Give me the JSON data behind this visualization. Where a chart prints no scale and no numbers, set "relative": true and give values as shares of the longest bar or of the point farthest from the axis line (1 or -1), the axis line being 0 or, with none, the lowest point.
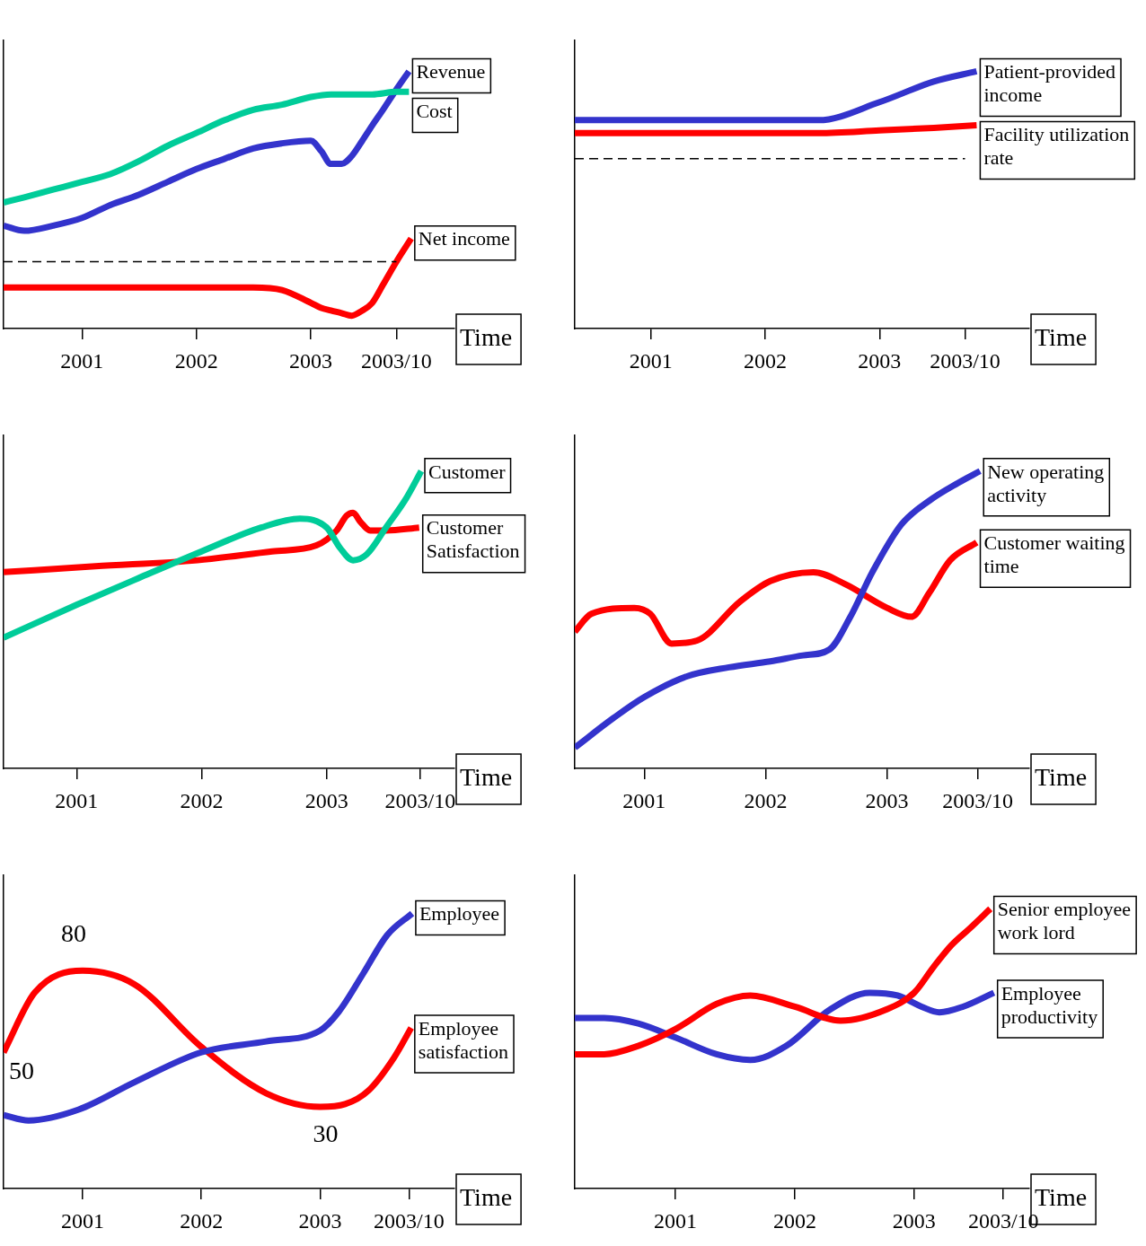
{
  "chart_data": [
    {
      "type": "line",
      "xlabel": "Time",
      "relative": true,
      "xlim": [
        "2000-04-26",
        "2004-04-03"
      ],
      "xticks": [
        "2001",
        "2002",
        "2003",
        {
          "value": "2003-10",
          "label": "2003/10"
        }
      ],
      "legend": false,
      "ref_lines": [
        {
          "axis": "y",
          "value": 0.26,
          "color": "#000000",
          "line_style": "dashed"
        }
      ],
      "series": [
        {
          "name": "Cost",
          "color": "#00cc99",
          "x": [
            "2000-04-26",
            "2000-07-01",
            "2000-10-01",
            "2001-01-01",
            "2001-04-01",
            "2001-07-01",
            "2001-10-01",
            "2002-01-01",
            "2002-04-01",
            "2002-07-01",
            "2002-10-01",
            "2003-01-01",
            "2003-03-06",
            "2003-05-11",
            "2003-07-16",
            "2003-10-01",
            "2003-11-10"
          ],
          "values": [
            0.49,
            0.51,
            0.54,
            0.57,
            0.6,
            0.65,
            0.71,
            0.76,
            0.81,
            0.85,
            0.87,
            0.9,
            0.91,
            0.91,
            0.91,
            0.92,
            0.92
          ]
        },
        {
          "name": "Revenue",
          "color": "#3333cc",
          "x": [
            "2000-04-26",
            "2000-07-01",
            "2000-10-01",
            "2001-01-01",
            "2001-04-01",
            "2001-07-01",
            "2001-10-01",
            "2002-01-01",
            "2002-04-01",
            "2002-07-01",
            "2002-10-01",
            "2003-01-01",
            "2003-02-03",
            "2003-03-06",
            "2003-04-09",
            "2003-05-11",
            "2003-06-14",
            "2003-07-16",
            "2003-08-19",
            "2003-10-01",
            "2003-11-10"
          ],
          "values": [
            0.4,
            0.38,
            0.4,
            0.43,
            0.48,
            0.52,
            0.57,
            0.62,
            0.66,
            0.7,
            0.72,
            0.73,
            0.69,
            0.64,
            0.64,
            0.67,
            0.73,
            0.79,
            0.85,
            0.93,
            1
          ]
        },
        {
          "name": "Net income",
          "color": "#ff0000",
          "x": [
            "2000-04-26",
            "2001-01-01",
            "2002-01-01",
            "2002-07-01",
            "2002-10-01",
            "2003-01-01",
            "2003-02-03",
            "2003-03-06",
            "2003-04-09",
            "2003-05-11",
            "2003-06-14",
            "2003-07-16",
            "2003-08-19",
            "2003-10-01",
            "2003-11-17"
          ],
          "values": [
            0.16,
            0.16,
            0.16,
            0.16,
            0.15,
            0.1,
            0.08,
            0.07,
            0.06,
            0.05,
            0.07,
            0.1,
            0.17,
            0.26,
            0.35
          ]
        }
      ]
    },
    {
      "type": "line",
      "xlabel": "Time",
      "relative": true,
      "xlim": [
        "2000-05-03",
        "2004-04-23"
      ],
      "xticks": [
        "2001",
        "2002",
        "2003",
        {
          "value": "2003-10",
          "label": "2003/10"
        }
      ],
      "legend": false,
      "ref_lines": [
        {
          "axis": "y",
          "value": 0.66,
          "color": "#000000",
          "line_style": "dashed"
        }
      ],
      "series": [
        {
          "name": "Patient-provided income",
          "color": "#3333cc",
          "x": [
            "2000-05-03",
            "2001-01-01",
            "2002-01-01",
            "2002-06-20",
            "2003-01-01",
            "2003-06-23",
            "2003-11-07"
          ],
          "values": [
            0.81,
            0.81,
            0.81,
            0.81,
            0.88,
            0.96,
            1
          ]
        },
        {
          "name": "Facility utilization rate",
          "color": "#ff0000",
          "x": [
            "2000-05-03",
            "2001-01-01",
            "2002-01-01",
            "2002-06-20",
            "2003-01-01",
            "2003-06-23",
            "2003-11-07"
          ],
          "values": [
            0.76,
            0.76,
            0.76,
            0.76,
            0.77,
            0.78,
            0.79
          ]
        }
      ]
    },
    {
      "type": "line",
      "xlabel": "Time",
      "relative": true,
      "xlim": [
        "2000-06-02",
        "2004-01-09"
      ],
      "xticks": [
        "2001",
        "2002",
        "2003",
        {
          "value": "2003-10",
          "label": "2003/10"
        }
      ],
      "legend": false,
      "series": [
        {
          "name": "Customer",
          "color": "#00cc99",
          "x": [
            "2000-06-02",
            "2001-01-01",
            "2001-07-01",
            "2002-01-01",
            "2002-06-24",
            "2002-10-15",
            "2003-01-01",
            "2003-02-10",
            "2003-03-19",
            "2003-04-28",
            "2003-06-23",
            "2003-08-22",
            "2003-10-04"
          ],
          "values": [
            0.44,
            0.55,
            0.64,
            0.73,
            0.81,
            0.84,
            0.81,
            0.74,
            0.7,
            0.72,
            0.81,
            0.91,
            1
          ]
        },
        {
          "name": "Customer Satisfaction",
          "color": "#ff0000",
          "x": [
            "2000-06-02",
            "2001-02-25",
            "2001-12-20",
            "2002-07-26",
            "2002-12-02",
            "2003-01-30",
            "2003-02-28",
            "2003-03-19",
            "2003-04-09",
            "2003-05-08",
            "2003-06-23",
            "2003-09-28"
          ],
          "values": [
            0.66,
            0.68,
            0.7,
            0.73,
            0.75,
            0.8,
            0.85,
            0.86,
            0.83,
            0.8,
            0.8,
            0.81
          ]
        }
      ]
    },
    {
      "type": "line",
      "xlabel": "Time",
      "relative": true,
      "xlim": [
        "2000-06-06",
        "2004-03-04"
      ],
      "xticks": [
        "2001",
        "2002",
        "2003",
        {
          "value": "2003-10",
          "label": "2003/10"
        }
      ],
      "legend": false,
      "series": [
        {
          "name": "New operating activity",
          "color": "#3333cc",
          "x": [
            "2000-06-06",
            "2000-10-01",
            "2001-01-01",
            "2001-05-11",
            "2001-09-13",
            "2002-01-15",
            "2002-04-23",
            "2002-07-12",
            "2002-09-13",
            "2002-11-18",
            "2003-02-13",
            "2003-05-08",
            "2003-08-03",
            "2003-10-08"
          ],
          "values": [
            0.07,
            0.17,
            0.24,
            0.31,
            0.34,
            0.36,
            0.38,
            0.4,
            0.51,
            0.66,
            0.82,
            0.9,
            0.96,
            1
          ]
        },
        {
          "name": "Customer waiting time",
          "color": "#ff0000",
          "x": [
            "2000-06-06",
            "2000-07-26",
            "2000-12-02",
            "2001-01-19",
            "2001-03-24",
            "2001-06-09",
            "2001-10-15",
            "2002-01-15",
            "2002-05-25",
            "2002-08-28",
            "2003-01-01",
            "2003-03-16",
            "2003-05-08",
            "2003-07-10",
            "2003-09-28"
          ],
          "values": [
            0.46,
            0.52,
            0.54,
            0.52,
            0.42,
            0.43,
            0.56,
            0.63,
            0.66,
            0.62,
            0.54,
            0.51,
            0.59,
            0.7,
            0.76
          ]
        }
      ]
    },
    {
      "type": "line",
      "xlabel": "Time",
      "xlim": [
        "2000-05-03",
        "2004-02-18"
      ],
      "ylim": [
        0,
        115
      ],
      "tick_labels": "x",
      "xticks": [
        "2001",
        "2002",
        "2003",
        {
          "value": "2003-10",
          "label": "2003/10"
        }
      ],
      "legend": false,
      "series": [
        {
          "name": "Employee",
          "color": "#3333cc",
          "x": [
            "2000-05-03",
            "2000-07-19",
            "2000-12-20",
            "2001-06-09",
            "2002-01-01",
            "2002-07-19",
            "2003-01-01",
            "2003-02-28",
            "2003-05-14",
            "2003-07-26",
            "2003-10-11"
          ],
          "values": [
            27,
            25,
            29,
            39,
            50,
            54,
            58,
            65,
            79,
            93,
            101
          ]
        },
        {
          "name": "Employee satisfaction",
          "color": "#ff0000",
          "x": [
            "2000-05-03",
            "2000-08-07",
            "2001-01-01",
            "2001-06-09",
            "2002-01-01",
            "2002-07-19",
            "2003-01-01",
            "2003-03-19",
            "2003-05-30",
            "2003-08-16",
            "2003-10-08"
          ],
          "values": [
            50,
            72,
            80,
            75,
            52,
            35,
            30,
            31,
            36,
            48,
            59
          ],
          "value_labels": [
            "50",
            null,
            "80",
            null,
            null,
            null,
            "30",
            null,
            null,
            null,
            null
          ]
        }
      ]
    },
    {
      "type": "line",
      "xlabel": "Time",
      "relative": true,
      "xlim": [
        "2000-02-28",
        "2003-12-19"
      ],
      "xticks": [
        "2001",
        "2002",
        "2003",
        {
          "value": "2003-10",
          "label": "2003/10"
        }
      ],
      "legend": false,
      "series": [
        {
          "name": "Senior employee work lord",
          "color": "#ff0000",
          "x": [
            "2000-02-28",
            "2000-05-28",
            "2000-09-09",
            "2001-01-01",
            "2001-05-07",
            "2001-08-18",
            "2002-01-01",
            "2002-05-21",
            "2002-10-08",
            "2003-01-01",
            "2003-02-28",
            "2003-04-25",
            "2003-06-20",
            "2003-08-22"
          ],
          "values": [
            0.48,
            0.48,
            0.51,
            0.57,
            0.66,
            0.69,
            0.65,
            0.6,
            0.64,
            0.7,
            0.79,
            0.87,
            0.93,
            1
          ]
        },
        {
          "name": "Employee productivity",
          "color": "#3333cc",
          "x": [
            "2000-02-28",
            "2000-05-28",
            "2000-09-09",
            "2001-01-01",
            "2001-05-07",
            "2001-08-18",
            "2001-12-06",
            "2002-04-19",
            "2002-08-18",
            "2002-11-11",
            "2003-01-24",
            "2003-03-19",
            "2003-05-30",
            "2003-09-02"
          ],
          "values": [
            0.61,
            0.61,
            0.59,
            0.54,
            0.48,
            0.46,
            0.51,
            0.64,
            0.7,
            0.69,
            0.65,
            0.63,
            0.65,
            0.7
          ]
        }
      ]
    }
  ]
}
